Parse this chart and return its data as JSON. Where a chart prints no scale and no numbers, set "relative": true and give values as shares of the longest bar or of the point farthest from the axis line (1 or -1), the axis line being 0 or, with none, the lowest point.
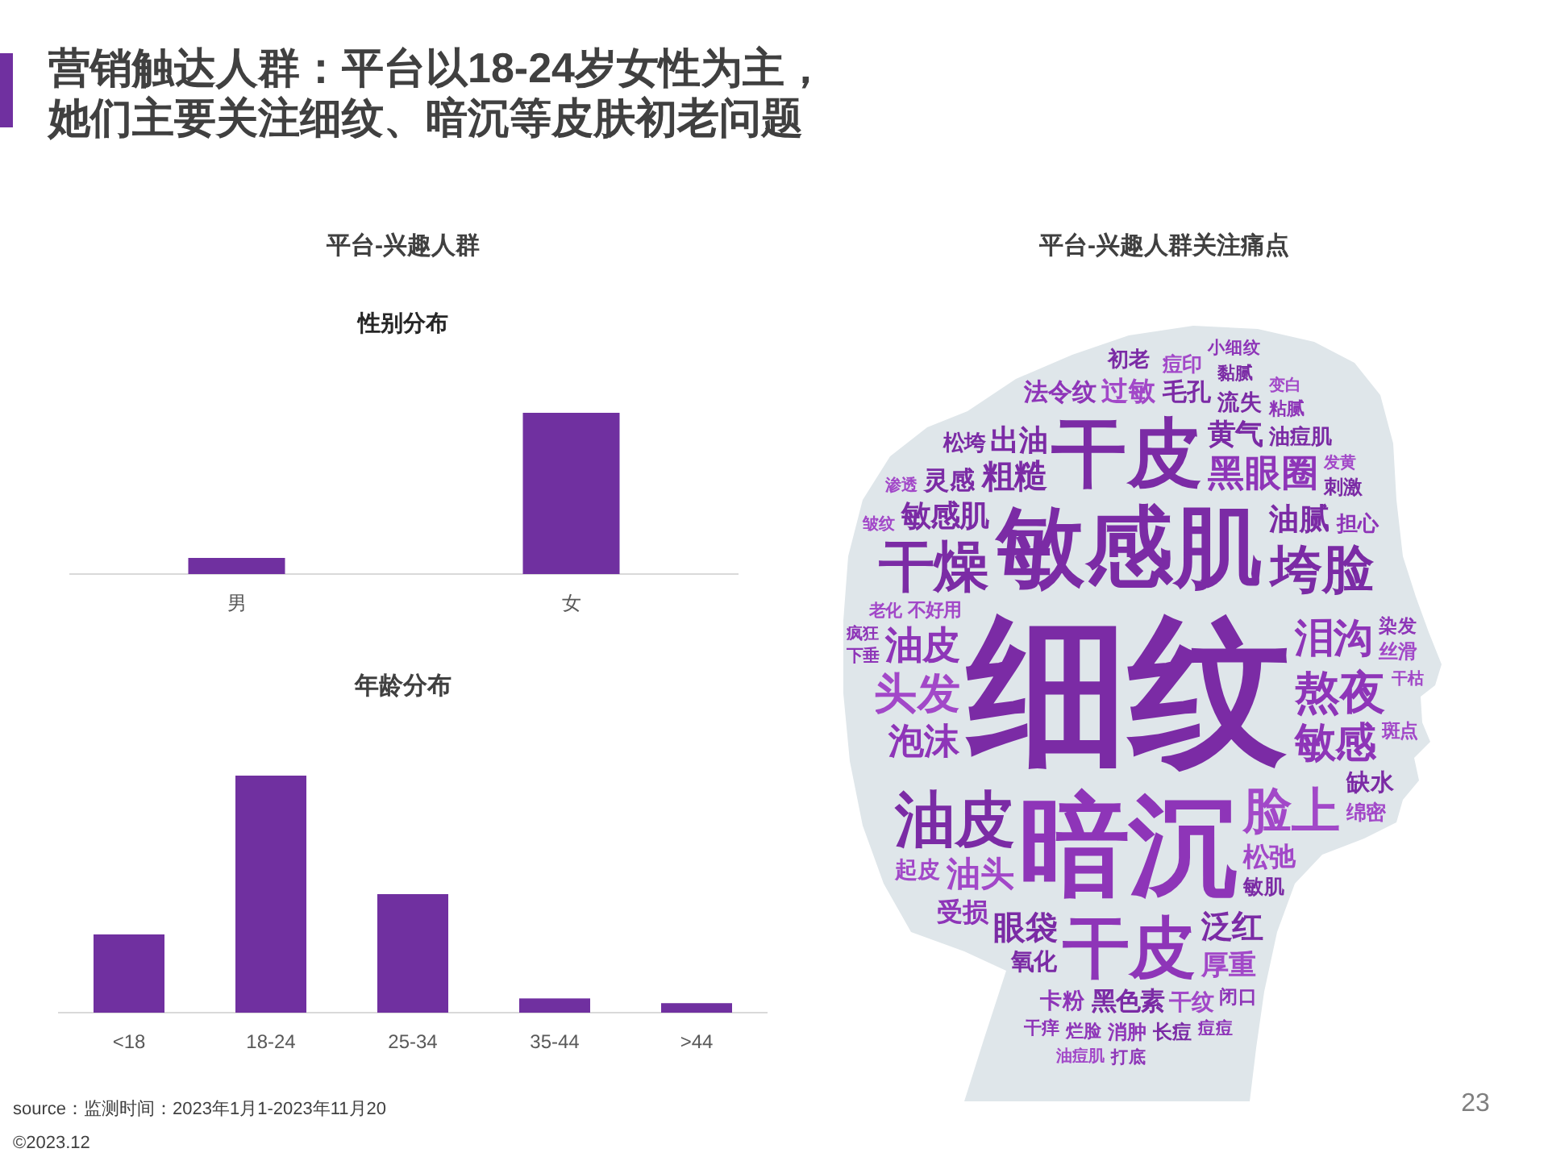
{
  "chart_data": [
    {
      "type": "other",
      "title": "营销触达人群：平台以18-24岁女性为主，她们主要关注细纹、暗沉等皮肤初老问题"
    },
    {
      "type": "bar",
      "title": "平台-兴趣人群",
      "subtitle": "性别分布",
      "categories": [
        "男",
        "女"
      ],
      "values": [
        0.1,
        1
      ],
      "relative": true,
      "color": "#7030a0"
    },
    {
      "type": "bar",
      "title": "年龄分布",
      "categories": [
        "<18",
        "18-24",
        "25-34",
        "35-44",
        ">44"
      ],
      "values": [
        0.33,
        1,
        0.5,
        0.06,
        0.04
      ],
      "relative": true,
      "color": "#7030a0",
      "annotations": [
        "source：监测时间：2023年1月1-2023年11月20",
        "©2023.12"
      ]
    },
    {
      "type": "other",
      "title": "平台-兴趣人群关注痛点",
      "categories": [
        "细纹",
        "暗沉",
        "敏感肌",
        "干皮",
        "干皮",
        "油皮",
        "干燥",
        "垮脸",
        "脸上",
        "熬夜",
        "头发",
        "敏感",
        "泪沟",
        "油皮",
        "黑眼圈",
        "泡沫",
        "油头",
        "粗糙",
        "眼袋",
        "泛红",
        "油腻",
        "敏感肌",
        "出油",
        "黄气",
        "厚重",
        "过敏",
        "松弛",
        "受损",
        "灵感",
        "黑色素",
        "法令纹",
        "毛孔",
        "缺水",
        "氧化",
        "起皮",
        "干纹",
        "卡粉",
        "流失",
        "松垮",
        "油痘肌",
        "担心",
        "初老",
        "敏肌",
        "绵密",
        "痘印",
        "刺激",
        "消肿",
        "丝滑",
        "长痘",
        "闭口",
        "染发",
        "不好用",
        "斑点",
        "烂脸",
        "粘腻",
        "黏腻",
        "干痒",
        "痘痘",
        "打底",
        "小细纹",
        "老化",
        "下垂",
        "疯狂",
        "干枯",
        "发黄",
        "渗透",
        "皱纹",
        "变白",
        "油痘肌"
      ],
      "colors": [
        "#7b2ba5",
        "#8e35b8",
        "#7b2ba5",
        "#7b2ba5",
        "#8e35b8",
        "#7b2ba5",
        "#7b2ba5",
        "#7b2ba5",
        "#a248c8",
        "#8e35b8",
        "#a248c8",
        "#8e35b8",
        "#8e35b8",
        "#8e35b8",
        "#8e35b8",
        "#8e35b8",
        "#a248c8",
        "#7b2ba5",
        "#7b2ba5",
        "#7b2ba5",
        "#7b2ba5",
        "#7b2ba5",
        "#7b2ba5",
        "#7b2ba5",
        "#a248c8",
        "#a248c8",
        "#a248c8",
        "#8e35b8",
        "#7b2ba5",
        "#7b2ba5",
        "#8e35b8",
        "#7b2ba5",
        "#7b2ba5",
        "#7b2ba5",
        "#a248c8",
        "#a248c8",
        "#8e35b8",
        "#7b2ba5",
        "#7b2ba5",
        "#7b2ba5",
        "#8e35b8",
        "#7b2ba5",
        "#7b2ba5",
        "#a248c8",
        "#a248c8",
        "#7b2ba5",
        "#8e35b8",
        "#a248c8",
        "#7b2ba5",
        "#8e35b8",
        "#8e35b8",
        "#a248c8",
        "#a248c8",
        "#8e35b8",
        "#8e35b8",
        "#7b2ba5",
        "#8e35b8",
        "#8e35b8",
        "#8e35b8",
        "#8e35b8",
        "#a248c8",
        "#8e35b8",
        "#8e35b8",
        "#a248c8",
        "#a248c8",
        "#a248c8",
        "#a248c8",
        "#a248c8",
        "#a248c8"
      ],
      "annotations": [
        "23"
      ]
    }
  ]
}
